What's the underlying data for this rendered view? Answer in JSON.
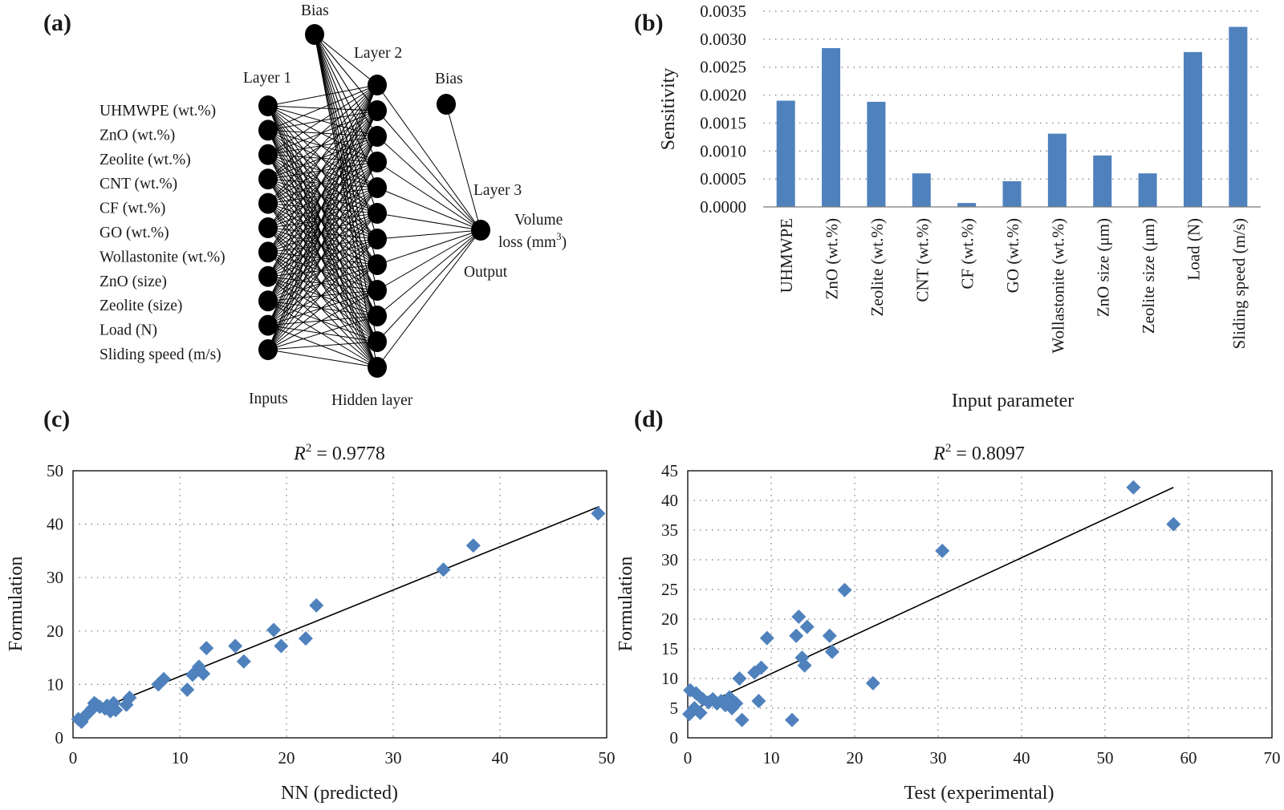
{
  "panels": {
    "a": {
      "label": "(a)",
      "network": {
        "layer1_title": "Layer 1",
        "layer2_title": "Layer 2",
        "layer3_title": "Layer 3",
        "bias1": "Bias",
        "bias2": "Bias",
        "inputs_title": "Inputs",
        "hidden_title": "Hidden layer",
        "output_title": "Output",
        "output_var_line1": "Volume",
        "output_var_line2": "loss (mm",
        "output_var_sup": "3",
        "output_var_end": ")",
        "inputs": [
          "UHMWPE (wt.%)",
          "ZnO (wt.%)",
          "Zeolite (wt.%)",
          "CNT (wt.%)",
          "CF (wt.%)",
          "GO (wt.%)",
          "Wollastonite (wt.%)",
          "ZnO (size)",
          "Zeolite (size)",
          "Load (N)",
          "Sliding speed (m/s)"
        ],
        "hidden_neuron_count": 12
      }
    },
    "b": {
      "label": "(b)"
    },
    "c": {
      "label": "(c)",
      "r2_symbol": "R",
      "r2_sup": "2",
      "r2_value": " = 0.9778"
    },
    "d": {
      "label": "(d)",
      "r2_symbol": "R",
      "r2_sup": "2",
      "r2_value": " = 0.8097"
    }
  },
  "colors": {
    "bar": "#4f81bd",
    "marker": "#4f81bd",
    "line": "#000000",
    "neuron": "#000000"
  },
  "chart_data": [
    {
      "id": "b",
      "type": "bar",
      "categories": [
        "UHMWPE",
        "ZnO (wt.%)",
        "Zeolite (wt.%)",
        "CNT (wt.%)",
        "CF (wt.%)",
        "GO (wt.%)",
        "Wollastonite (wt.%)",
        "ZnO size (μm)",
        "Zeolite size (μm)",
        "Load (N)",
        "Sliding speed (m/s)"
      ],
      "values": [
        0.0019,
        0.00284,
        0.00188,
        0.0006,
        7e-05,
        0.00046,
        0.00131,
        0.00092,
        0.0006,
        0.00277,
        0.00322
      ],
      "xlabel": "Input parameter",
      "ylabel": "Sensitivity",
      "ylim": [
        0,
        0.0035
      ],
      "yticks": [
        "0.0000",
        "0.0005",
        "0.0010",
        "0.0015",
        "0.0020",
        "0.0025",
        "0.0030",
        "0.0035"
      ],
      "grid": "horizontal dotted"
    },
    {
      "id": "c",
      "type": "scatter",
      "xlabel": "NN (predicted)",
      "ylabel": "Formulation",
      "xlim": [
        0,
        50
      ],
      "ylim": [
        0,
        50
      ],
      "xticks": [
        "0",
        "10",
        "20",
        "30",
        "40",
        "50"
      ],
      "yticks": [
        "0",
        "10",
        "20",
        "30",
        "40",
        "50"
      ],
      "grid": "dotted",
      "points": [
        [
          0.5,
          3.5
        ],
        [
          0.8,
          3.0
        ],
        [
          1.0,
          3.8
        ],
        [
          1.2,
          4.2
        ],
        [
          1.5,
          4.8
        ],
        [
          1.8,
          5.5
        ],
        [
          2.0,
          6.5
        ],
        [
          2.2,
          6.2
        ],
        [
          2.5,
          5.8
        ],
        [
          3.0,
          5.5
        ],
        [
          3.2,
          6.0
        ],
        [
          3.5,
          5.0
        ],
        [
          3.8,
          6.5
        ],
        [
          4.0,
          5.2
        ],
        [
          5.0,
          6.2
        ],
        [
          5.3,
          7.5
        ],
        [
          8.0,
          10.0
        ],
        [
          8.5,
          11.0
        ],
        [
          10.7,
          9.0
        ],
        [
          11.2,
          11.8
        ],
        [
          11.8,
          13.3
        ],
        [
          12.2,
          12.0
        ],
        [
          12.5,
          16.8
        ],
        [
          15.2,
          17.2
        ],
        [
          16.0,
          14.3
        ],
        [
          18.8,
          20.2
        ],
        [
          19.5,
          17.2
        ],
        [
          21.8,
          18.6
        ],
        [
          22.8,
          24.8
        ],
        [
          34.7,
          31.5
        ],
        [
          37.5,
          36.0
        ],
        [
          49.2,
          42.0
        ]
      ],
      "trendline": {
        "x": [
          0,
          49.3
        ],
        "y": [
          3.4,
          43.3
        ]
      }
    },
    {
      "id": "d",
      "type": "scatter",
      "xlabel": "Test (experimental)",
      "ylabel": "Formulation",
      "xlim": [
        0,
        70
      ],
      "ylim": [
        0,
        45
      ],
      "xticks": [
        "0",
        "10",
        "20",
        "30",
        "40",
        "50",
        "60",
        "70"
      ],
      "yticks": [
        "0",
        "5",
        "10",
        "15",
        "20",
        "25",
        "30",
        "35",
        "40",
        "45"
      ],
      "grid": "dotted",
      "points": [
        [
          0.2,
          4.0
        ],
        [
          0.3,
          8.0
        ],
        [
          0.8,
          5.0
        ],
        [
          1.0,
          7.5
        ],
        [
          1.5,
          4.2
        ],
        [
          1.8,
          6.5
        ],
        [
          2.5,
          6.0
        ],
        [
          3.0,
          6.5
        ],
        [
          3.5,
          5.8
        ],
        [
          4.0,
          6.2
        ],
        [
          4.5,
          5.5
        ],
        [
          5.0,
          6.8
        ],
        [
          5.3,
          5.0
        ],
        [
          5.8,
          5.8
        ],
        [
          6.2,
          10.0
        ],
        [
          6.5,
          3.0
        ],
        [
          8.0,
          11.0
        ],
        [
          8.5,
          6.2
        ],
        [
          8.8,
          11.8
        ],
        [
          9.5,
          16.8
        ],
        [
          12.5,
          3.0
        ],
        [
          13.0,
          17.2
        ],
        [
          13.3,
          20.4
        ],
        [
          13.7,
          13.5
        ],
        [
          14.0,
          12.2
        ],
        [
          14.3,
          18.7
        ],
        [
          17.0,
          17.2
        ],
        [
          17.3,
          14.5
        ],
        [
          18.8,
          24.9
        ],
        [
          22.2,
          9.2
        ],
        [
          30.5,
          31.5
        ],
        [
          53.4,
          42.2
        ],
        [
          58.2,
          36.0
        ]
      ],
      "trendline": {
        "x": [
          0,
          58.2
        ],
        "y": [
          4.3,
          42.2
        ]
      }
    }
  ]
}
